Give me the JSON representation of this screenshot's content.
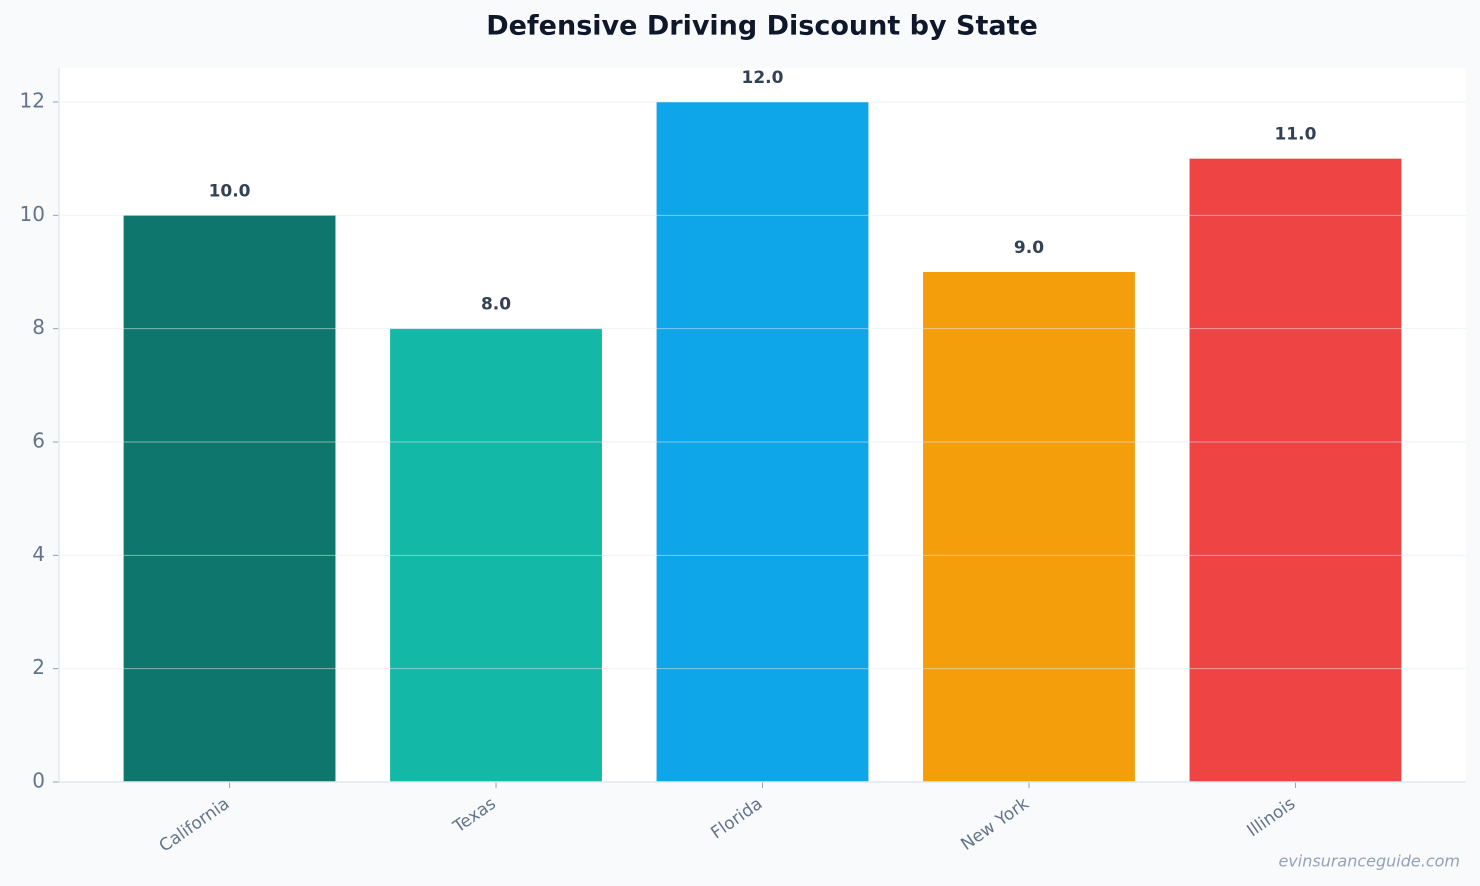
{
  "chart_data": {
    "type": "bar",
    "title": "Defensive Driving Discount by State",
    "categories": [
      "California",
      "Texas",
      "Florida",
      "New York",
      "Illinois"
    ],
    "series": [
      {
        "values": [
          10,
          8,
          12,
          9,
          11
        ],
        "value_labels": [
          "10.0",
          "8.0",
          "12.0",
          "9.0",
          "11.0"
        ],
        "colors": [
          "#0f766e",
          "#14b8a6",
          "#0ea5e9",
          "#f59e0b",
          "#ef4444"
        ]
      }
    ],
    "ylim": [
      0,
      12.6
    ],
    "yticks": [
      0,
      2,
      4,
      6,
      8,
      10,
      12
    ],
    "grid": true,
    "watermark": "evinsuranceguide.com"
  }
}
